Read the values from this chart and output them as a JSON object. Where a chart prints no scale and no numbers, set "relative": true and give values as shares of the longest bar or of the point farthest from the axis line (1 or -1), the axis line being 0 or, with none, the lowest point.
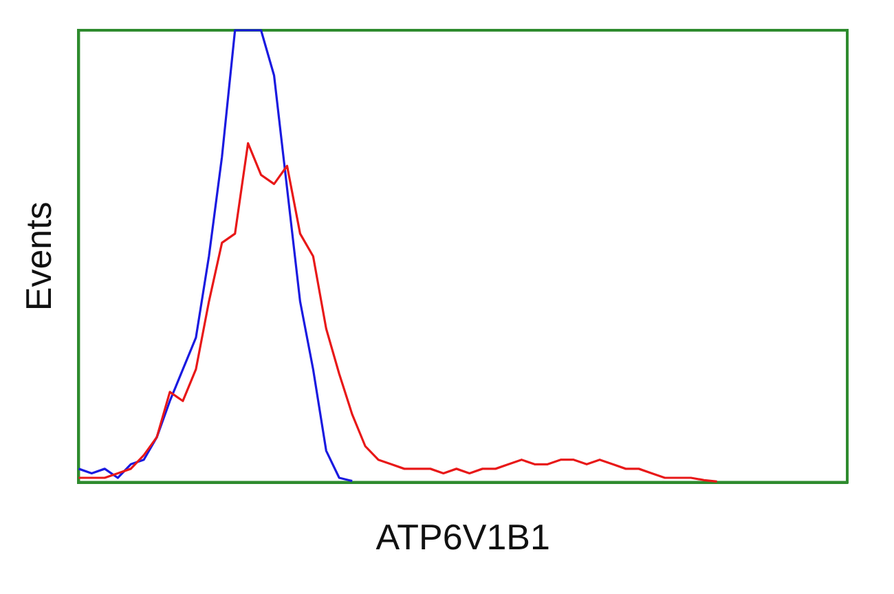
{
  "chart_data": {
    "type": "line",
    "xlabel": "ATP6V1B1",
    "ylabel": "Events",
    "relative": true,
    "legend": false,
    "grid": false,
    "categories": [
      null,
      null,
      null,
      null,
      null,
      null,
      null,
      null,
      null,
      null,
      null,
      null,
      null,
      null,
      null,
      null,
      null,
      null,
      null,
      null,
      null,
      null,
      null,
      null,
      null,
      null,
      null,
      null,
      null,
      null,
      null,
      null,
      null,
      null,
      null,
      null,
      null,
      null,
      null,
      null,
      null,
      null,
      null,
      null,
      null,
      null,
      null,
      null,
      null,
      null,
      null,
      null,
      null,
      null,
      null,
      null,
      null,
      null,
      null,
      null
    ],
    "series": [
      {
        "color": "#e81818",
        "values": [
          0.01,
          0.01,
          0.01,
          0.02,
          0.03,
          0.06,
          0.1,
          0.2,
          0.18,
          0.25,
          0.4,
          0.53,
          0.55,
          0.75,
          0.68,
          0.66,
          0.7,
          0.55,
          0.5,
          0.34,
          0.24,
          0.15,
          0.08,
          0.05,
          0.04,
          0.03,
          0.03,
          0.03,
          0.02,
          0.03,
          0.02,
          0.03,
          0.03,
          0.04,
          0.05,
          0.04,
          0.04,
          0.05,
          0.05,
          0.04,
          0.05,
          0.04,
          0.03,
          0.03,
          0.02,
          0.01,
          0.01,
          0.01,
          0.005,
          0.002,
          null,
          null,
          null,
          null,
          null,
          null,
          null,
          null,
          null,
          null
        ]
      },
      {
        "color": "#1a1ae0",
        "values": [
          0.03,
          0.02,
          0.03,
          0.01,
          0.04,
          0.05,
          0.1,
          0.18,
          0.25,
          0.32,
          0.5,
          0.72,
          1,
          1,
          1,
          0.9,
          0.65,
          0.4,
          0.25,
          0.07,
          0.01,
          0.003,
          null,
          null,
          null,
          null,
          null,
          null,
          null,
          null,
          null,
          null,
          null,
          null,
          null,
          null,
          null,
          null,
          null,
          null,
          null,
          null,
          null,
          null,
          null,
          null,
          null,
          null,
          null,
          null,
          null,
          null,
          null,
          null,
          null,
          null,
          null,
          null,
          null,
          null
        ]
      }
    ]
  }
}
